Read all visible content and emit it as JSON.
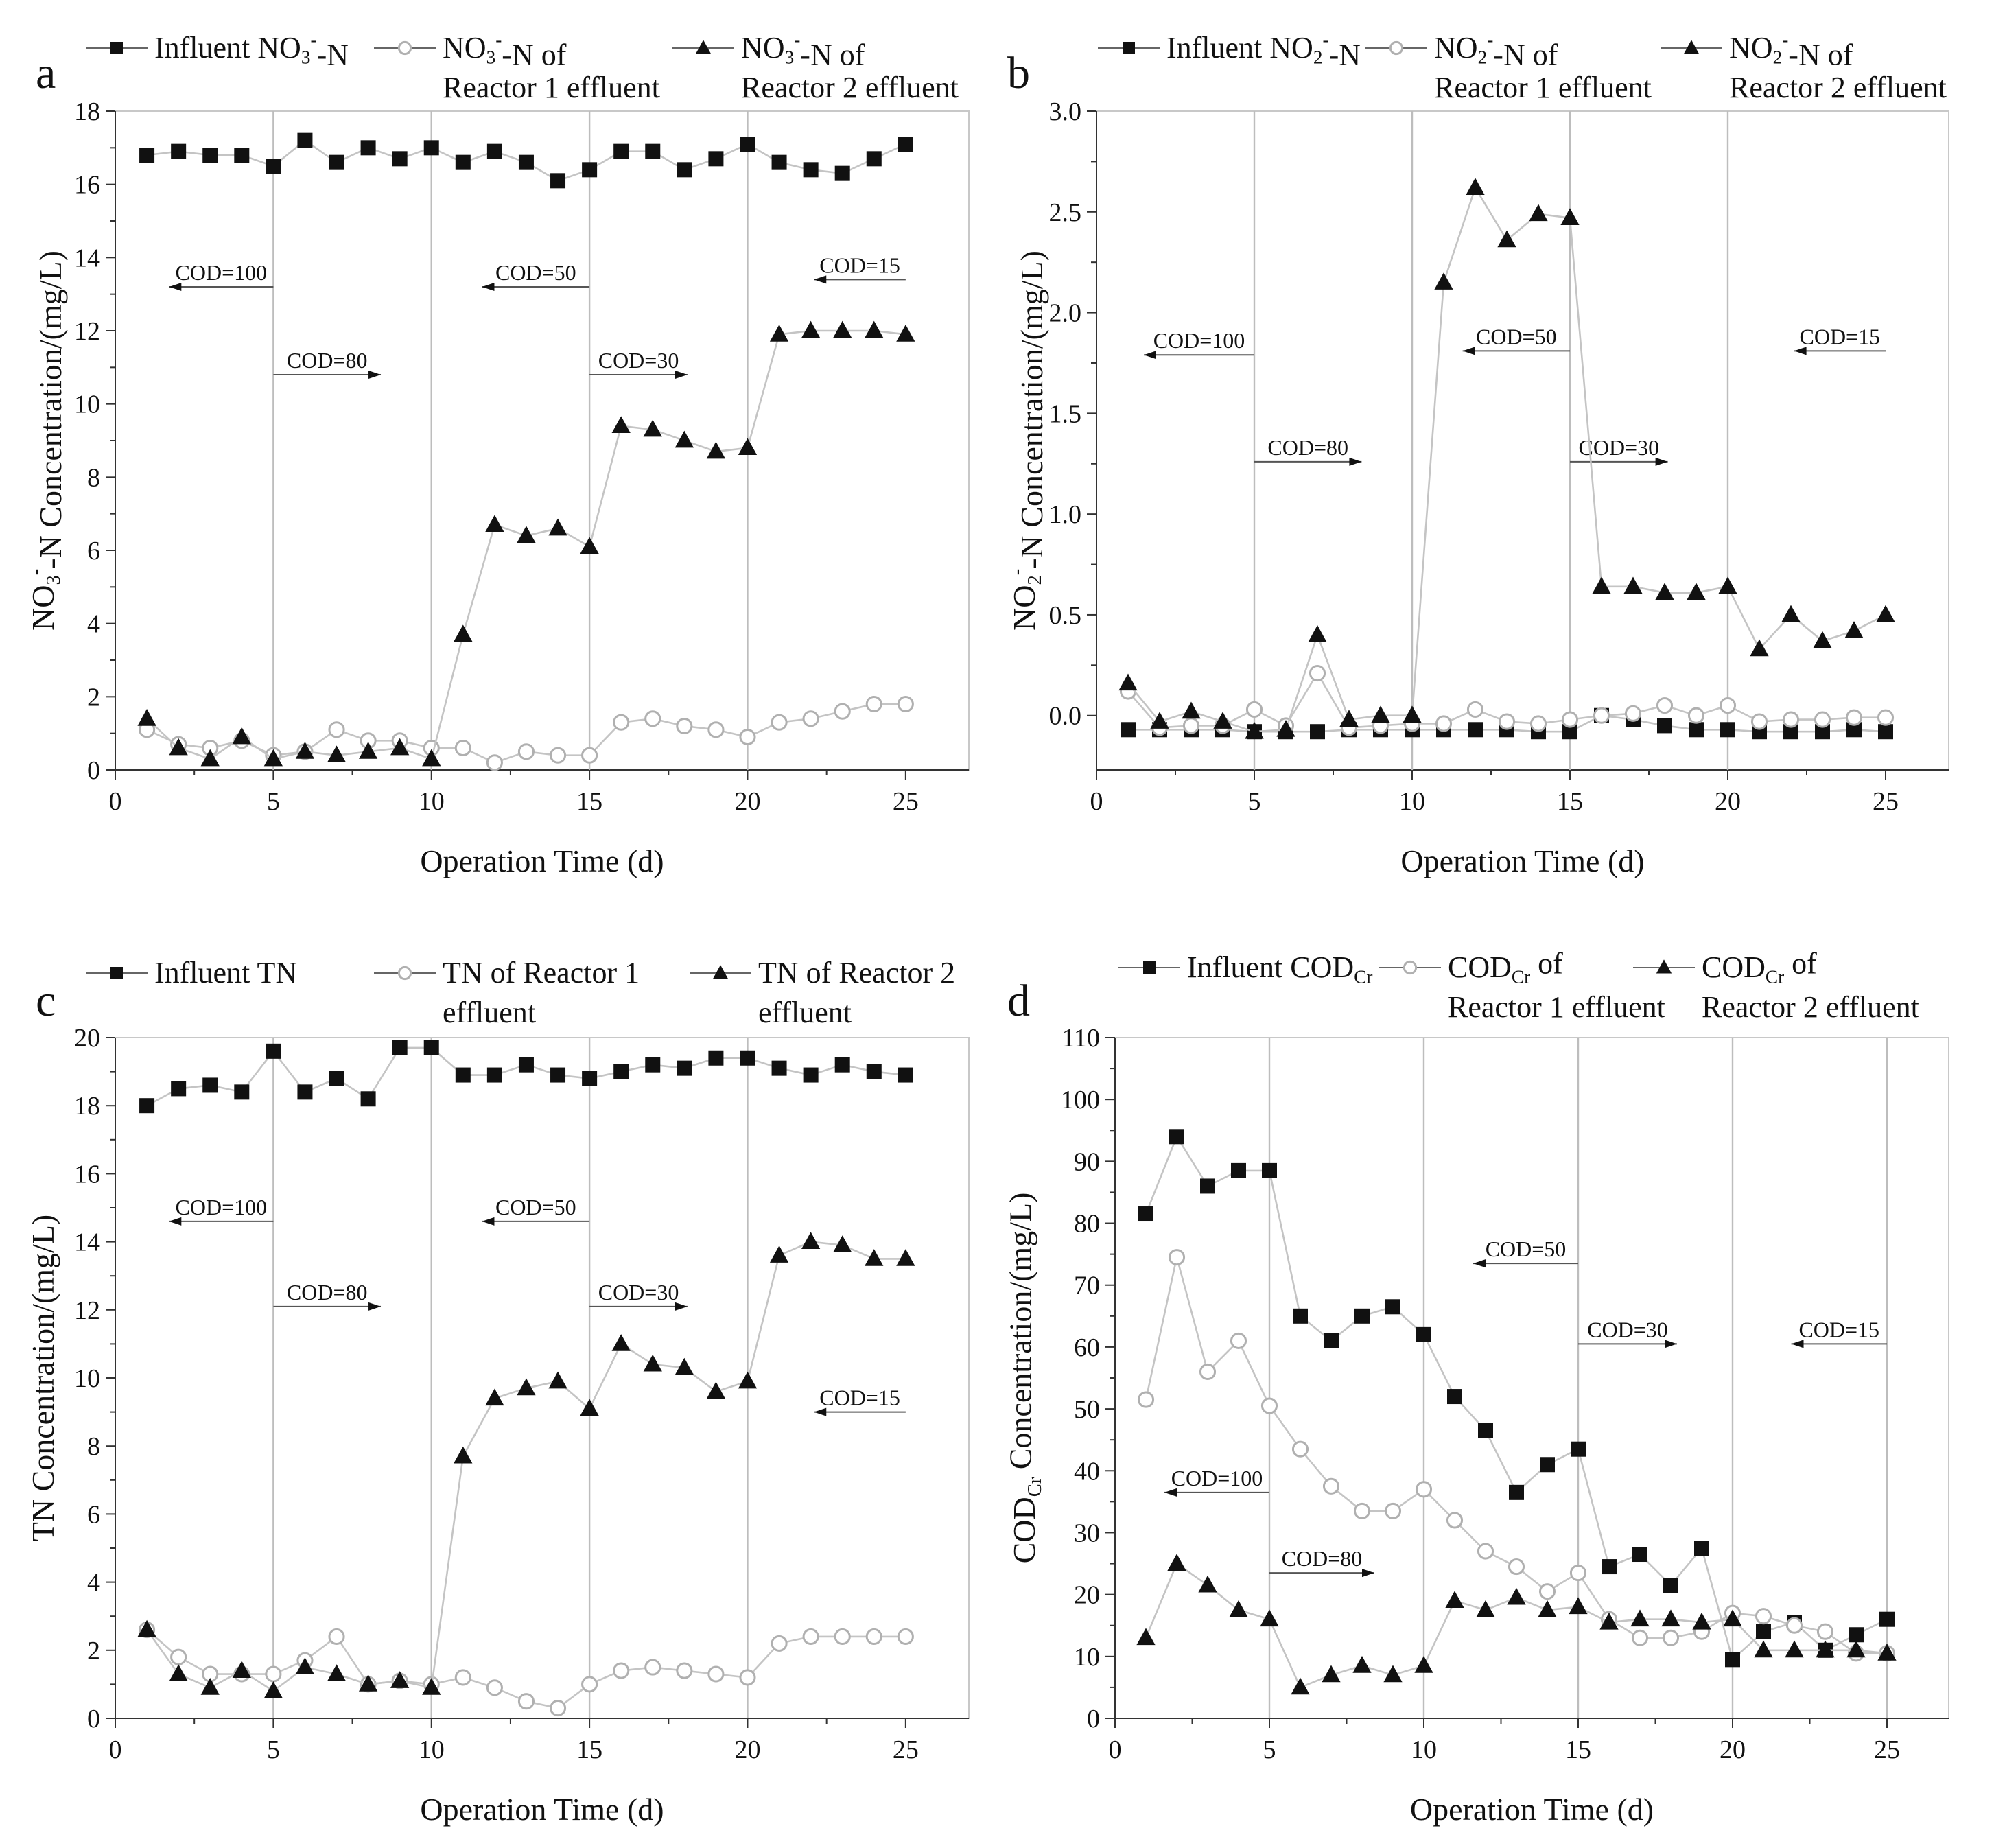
{
  "chart_data": [
    {
      "type": "line",
      "panel_label": "a",
      "xlabel": "Operation Time (d)",
      "ylabel": {
        "main": "NO",
        "sub": "3",
        "sup": "-",
        "rest": "-N  Concentration/(mg/L)"
      },
      "xlim": [
        0,
        27
      ],
      "ylim": [
        0,
        18
      ],
      "xticks": [
        0,
        5,
        10,
        15,
        20,
        25
      ],
      "yticks": [
        0,
        2,
        4,
        6,
        8,
        10,
        12,
        14,
        16,
        18
      ],
      "vlines": [
        5,
        10,
        15,
        20
      ],
      "x": [
        1,
        2,
        3,
        4,
        5,
        6,
        7,
        8,
        9,
        10,
        11,
        12,
        13,
        14,
        15,
        16,
        17,
        18,
        19,
        20,
        21,
        22,
        23,
        24,
        25
      ],
      "series": [
        {
          "name": "Influent  NO3--N",
          "marker": "square",
          "legend": {
            "main": "Influent  NO",
            "sub": "3",
            "sup": "-",
            "rest": "-N",
            "line2": ""
          },
          "values": [
            16.8,
            16.9,
            16.8,
            16.8,
            16.5,
            17.2,
            16.6,
            17.0,
            16.7,
            17.0,
            16.6,
            16.9,
            16.6,
            16.1,
            16.4,
            16.9,
            16.9,
            16.4,
            16.7,
            17.1,
            16.6,
            16.4,
            16.3,
            16.7,
            17.1
          ]
        },
        {
          "name": "NO3--N of Reactor 1 effluent",
          "marker": "circle",
          "legend": {
            "main": "NO",
            "sub": "3",
            "sup": "-",
            "rest": "-N of",
            "line2": "Reactor 1 effluent"
          },
          "values": [
            1.1,
            0.7,
            0.6,
            0.8,
            0.4,
            0.5,
            1.1,
            0.8,
            0.8,
            0.6,
            0.6,
            0.2,
            0.5,
            0.4,
            0.4,
            1.3,
            1.4,
            1.2,
            1.1,
            0.9,
            1.3,
            1.4,
            1.6,
            1.8,
            1.8
          ]
        },
        {
          "name": "NO3--N of Reactor 2 effluent",
          "marker": "triangle",
          "legend": {
            "main": "NO",
            "sub": "3",
            "sup": "-",
            "rest": "-N of",
            "line2": "Reactor 2 effluent"
          },
          "values": [
            1.4,
            0.6,
            0.3,
            0.9,
            0.3,
            0.5,
            0.4,
            0.5,
            0.6,
            0.3,
            3.7,
            6.7,
            6.4,
            6.6,
            6.1,
            9.4,
            9.3,
            9.0,
            8.7,
            8.8,
            11.9,
            12.0,
            12.0,
            12.0,
            11.9
          ]
        }
      ],
      "annotations": [
        {
          "text": "COD=100",
          "x_from": 5,
          "x_to": 1.7,
          "y": 13.2,
          "dir": "left"
        },
        {
          "text": "COD=80",
          "x_from": 5,
          "x_to": 8.4,
          "y": 10.8,
          "dir": "right"
        },
        {
          "text": "COD=50",
          "x_from": 15,
          "x_to": 11.6,
          "y": 13.2,
          "dir": "left"
        },
        {
          "text": "COD=30",
          "x_from": 15,
          "x_to": 18.1,
          "y": 10.8,
          "dir": "right"
        },
        {
          "text": "COD=15",
          "x_from": 25,
          "x_to": 22.1,
          "y": 13.4,
          "dir": "left"
        }
      ]
    },
    {
      "type": "line",
      "panel_label": "b",
      "xlabel": "Operation Time (d)",
      "ylabel": {
        "main": "NO",
        "sub": "2",
        "sup": "-",
        "rest": "-N  Concentration/(mg/L)"
      },
      "xlim": [
        0,
        27
      ],
      "ylim": [
        -0.27,
        3.0
      ],
      "xticks": [
        0,
        5,
        10,
        15,
        20,
        25
      ],
      "yticks": [
        0.0,
        0.5,
        1.0,
        1.5,
        2.0,
        2.5,
        3.0
      ],
      "ytick_labels": [
        "0.0",
        "0.5",
        "1.0",
        "1.5",
        "2.0",
        "2.5",
        "3.0"
      ],
      "vlines": [
        5,
        10,
        15,
        20
      ],
      "x": [
        1,
        2,
        3,
        4,
        5,
        6,
        7,
        8,
        9,
        10,
        11,
        12,
        13,
        14,
        15,
        16,
        17,
        18,
        19,
        20,
        21,
        22,
        23,
        24,
        25
      ],
      "series": [
        {
          "name": "Influent  NO2--N",
          "marker": "square",
          "legend": {
            "main": "Influent  NO",
            "sub": "2",
            "sup": "-",
            "rest": "-N",
            "line2": ""
          },
          "values": [
            -0.07,
            -0.07,
            -0.07,
            -0.07,
            -0.08,
            -0.08,
            -0.08,
            -0.07,
            -0.07,
            -0.07,
            -0.07,
            -0.07,
            -0.07,
            -0.08,
            -0.08,
            0.0,
            -0.02,
            -0.05,
            -0.07,
            -0.07,
            -0.08,
            -0.08,
            -0.08,
            -0.07,
            -0.08
          ]
        },
        {
          "name": "NO2--N of Reactor 1 effluent",
          "marker": "circle",
          "legend": {
            "main": "NO",
            "sub": "2",
            "sup": "-",
            "rest": "-N of",
            "line2": "Reactor 1 effluent"
          },
          "values": [
            0.12,
            -0.06,
            -0.05,
            -0.05,
            0.03,
            -0.05,
            0.21,
            -0.06,
            -0.05,
            -0.04,
            -0.04,
            0.03,
            -0.03,
            -0.04,
            -0.02,
            0.0,
            0.01,
            0.05,
            0.0,
            0.05,
            -0.03,
            -0.02,
            -0.02,
            -0.01,
            -0.01
          ]
        },
        {
          "name": "NO2--N of Reactor 2 effluent",
          "marker": "triangle",
          "legend": {
            "main": "NO",
            "sub": "2",
            "sup": "-",
            "rest": "-N of",
            "line2": "Reactor 2 effluent"
          },
          "values": [
            0.16,
            -0.03,
            0.02,
            -0.03,
            -0.08,
            -0.07,
            0.4,
            -0.02,
            0.0,
            0.0,
            2.15,
            2.62,
            2.36,
            2.49,
            2.47,
            0.64,
            0.64,
            0.61,
            0.61,
            0.64,
            0.33,
            0.5,
            0.37,
            0.42,
            0.5
          ]
        }
      ],
      "annotations": [
        {
          "text": "COD=100",
          "x_from": 5,
          "x_to": 1.5,
          "y": 1.79,
          "dir": "left"
        },
        {
          "text": "COD=80",
          "x_from": 5,
          "x_to": 8.4,
          "y": 1.26,
          "dir": "right"
        },
        {
          "text": "COD=50",
          "x_from": 15,
          "x_to": 11.6,
          "y": 1.81,
          "dir": "left"
        },
        {
          "text": "COD=30",
          "x_from": 15,
          "x_to": 18.1,
          "y": 1.26,
          "dir": "right"
        },
        {
          "text": "COD=15",
          "x_from": 25,
          "x_to": 22.1,
          "y": 1.81,
          "dir": "left"
        }
      ]
    },
    {
      "type": "line",
      "panel_label": "c",
      "xlabel": "Operation Time (d)",
      "ylabel": {
        "main": "TN  Concentration/(mg/L)",
        "sub": "",
        "sup": "",
        "rest": ""
      },
      "xlim": [
        0,
        27
      ],
      "ylim": [
        0,
        20
      ],
      "xticks": [
        0,
        5,
        10,
        15,
        20,
        25
      ],
      "yticks": [
        0,
        2,
        4,
        6,
        8,
        10,
        12,
        14,
        16,
        18,
        20
      ],
      "vlines": [
        5,
        10,
        15,
        20
      ],
      "x": [
        1,
        2,
        3,
        4,
        5,
        6,
        7,
        8,
        9,
        10,
        11,
        12,
        13,
        14,
        15,
        16,
        17,
        18,
        19,
        20,
        21,
        22,
        23,
        24,
        25
      ],
      "series": [
        {
          "name": "Influent  TN",
          "marker": "square",
          "legend": {
            "main": "Influent  TN",
            "sub": "",
            "sup": "",
            "rest": "",
            "line2": ""
          },
          "values": [
            18.0,
            18.5,
            18.6,
            18.4,
            19.6,
            18.4,
            18.8,
            18.2,
            19.7,
            19.7,
            18.9,
            18.9,
            19.2,
            18.9,
            18.8,
            19.0,
            19.2,
            19.1,
            19.4,
            19.4,
            19.1,
            18.9,
            19.2,
            19.0,
            18.9
          ]
        },
        {
          "name": "TN of Reactor 1 effluent",
          "marker": "circle",
          "legend": {
            "main": "TN of Reactor 1",
            "sub": "",
            "sup": "",
            "rest": "",
            "line2": "effluent"
          },
          "values": [
            2.6,
            1.8,
            1.3,
            1.3,
            1.3,
            1.7,
            2.4,
            1.0,
            1.1,
            1.0,
            1.2,
            0.9,
            0.5,
            0.3,
            1.0,
            1.4,
            1.5,
            1.4,
            1.3,
            1.2,
            2.2,
            2.4,
            2.4,
            2.4,
            2.4
          ]
        },
        {
          "name": "TN of Reactor 2 effluent",
          "marker": "triangle",
          "legend": {
            "main": "TN of Reactor 2",
            "sub": "",
            "sup": "",
            "rest": "",
            "line2": "effluent"
          },
          "values": [
            2.6,
            1.3,
            0.9,
            1.4,
            0.8,
            1.5,
            1.3,
            1.0,
            1.1,
            0.9,
            7.7,
            9.4,
            9.7,
            9.9,
            9.1,
            11.0,
            10.4,
            10.3,
            9.6,
            9.9,
            13.6,
            14.0,
            13.9,
            13.5,
            13.5
          ]
        }
      ],
      "annotations": [
        {
          "text": "COD=100",
          "x_from": 5,
          "x_to": 1.7,
          "y": 14.6,
          "dir": "left"
        },
        {
          "text": "COD=80",
          "x_from": 5,
          "x_to": 8.4,
          "y": 12.1,
          "dir": "right"
        },
        {
          "text": "COD=50",
          "x_from": 15,
          "x_to": 11.6,
          "y": 14.6,
          "dir": "left"
        },
        {
          "text": "COD=30",
          "x_from": 15,
          "x_to": 18.1,
          "y": 12.1,
          "dir": "right"
        },
        {
          "text": "COD=15",
          "x_from": 25,
          "x_to": 22.1,
          "y": 9.0,
          "dir": "left"
        }
      ]
    },
    {
      "type": "line",
      "panel_label": "d",
      "xlabel": "Operation Time  (d)",
      "ylabel": {
        "main": "COD",
        "sub": "Cr",
        "sup": "",
        "rest": "  Concentration/(mg/L)"
      },
      "xlim": [
        0,
        27
      ],
      "ylim": [
        0,
        110
      ],
      "xticks": [
        0,
        5,
        10,
        15,
        20,
        25
      ],
      "yticks": [
        0,
        10,
        20,
        30,
        40,
        50,
        60,
        70,
        80,
        90,
        100,
        110
      ],
      "vlines": [
        5,
        10,
        15,
        20,
        25
      ],
      "x": [
        1,
        2,
        3,
        4,
        5,
        6,
        7,
        8,
        9,
        10,
        11,
        12,
        13,
        14,
        15,
        16,
        17,
        18,
        19,
        20,
        21,
        22,
        23,
        24,
        25
      ],
      "series": [
        {
          "name": "Influent  CODCr",
          "marker": "square",
          "legend": {
            "main": "Influent  COD",
            "sub": "Cr",
            "sup": "",
            "rest": "",
            "line2": ""
          },
          "values": [
            81.5,
            94,
            86,
            88.5,
            88.5,
            65,
            61,
            65,
            66.5,
            62,
            52,
            46.5,
            36.5,
            41,
            43.5,
            24.5,
            26.5,
            21.5,
            27.5,
            9.5,
            14,
            15.5,
            11,
            13.5,
            16
          ]
        },
        {
          "name": "CODCr of Reactor 1 effluent",
          "marker": "circle",
          "legend": {
            "main": "COD",
            "sub": "Cr",
            "sup": "",
            "rest": " of",
            "line2": "Reactor 1 effluent"
          },
          "values": [
            51.5,
            74.5,
            56,
            61,
            50.5,
            43.5,
            37.5,
            33.5,
            33.5,
            37,
            32,
            27,
            24.5,
            20.5,
            23.5,
            16,
            13,
            13,
            14,
            17,
            16.5,
            15,
            14,
            10.5,
            10.5
          ]
        },
        {
          "name": "CODCr of Reactor 2 effluent",
          "marker": "triangle",
          "legend": {
            "main": "COD",
            "sub": "Cr",
            "sup": "",
            "rest": " of",
            "line2": "Reactor 2 effluent"
          },
          "values": [
            13,
            25,
            21.5,
            17.5,
            16,
            5,
            7,
            8.5,
            7,
            8.5,
            19,
            17.5,
            19.5,
            17.5,
            18,
            15.5,
            16,
            16,
            15.5,
            16,
            11,
            11,
            11,
            11,
            10.5
          ]
        }
      ],
      "annotations": [
        {
          "text": "COD=100",
          "x_from": 5,
          "x_to": 1.6,
          "y": 36.5,
          "dir": "left"
        },
        {
          "text": "COD=80",
          "x_from": 5,
          "x_to": 8.4,
          "y": 23.5,
          "dir": "right"
        },
        {
          "text": "COD=50",
          "x_from": 15,
          "x_to": 11.6,
          "y": 73.5,
          "dir": "left"
        },
        {
          "text": "COD=30",
          "x_from": 15,
          "x_to": 18.2,
          "y": 60.5,
          "dir": "right"
        },
        {
          "text": "COD=15",
          "x_from": 25,
          "x_to": 21.9,
          "y": 60.5,
          "dir": "left"
        }
      ]
    }
  ]
}
